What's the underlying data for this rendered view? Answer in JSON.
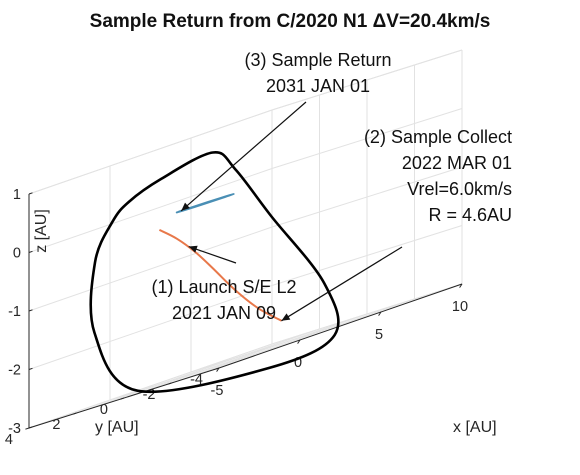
{
  "chart_data": {
    "type": "line",
    "projection": "3d",
    "title": "Sample Return from C/2020 N1 ΔV=20.4km/s",
    "xlabel": "x [AU]",
    "ylabel": "y [AU]",
    "zlabel": "z [AU]",
    "xlim": [
      -5,
      10
    ],
    "ylim": [
      -4,
      4
    ],
    "zlim": [
      -3,
      1
    ],
    "x_ticks": [
      -5,
      0,
      5,
      10
    ],
    "y_ticks": [
      -4,
      -2,
      0,
      2,
      4
    ],
    "z_ticks": [
      -3,
      -2,
      -1,
      0,
      1
    ],
    "x_tick_labels": [
      "-5",
      "0",
      "5",
      "10"
    ],
    "y_tick_labels": [
      "-4",
      "-2",
      "0",
      "2",
      "4"
    ],
    "z_tick_labels": [
      "-3",
      "-2",
      "-1",
      "0",
      "1"
    ],
    "grid": true,
    "series": [
      {
        "role": "comet orbit",
        "color": "#000000",
        "closed": true,
        "points": [
          [
            -0.4,
            -0.6,
            0.68
          ],
          [
            -0.8,
            1.3,
            0.51
          ],
          [
            -1.3,
            2.3,
            0.3
          ],
          [
            -1.9,
            2.6,
            0.05
          ],
          [
            -2.1,
            3.2,
            -0.55
          ],
          [
            -1.4,
            3.7,
            -1.75
          ],
          [
            1.4,
            3.8,
            -3.0
          ],
          [
            4.7,
            0.5,
            -3.35
          ],
          [
            6.1,
            -1.3,
            -3.15
          ],
          [
            5.3,
            -1.4,
            -2.2
          ],
          [
            3.2,
            -0.6,
            -0.75
          ],
          [
            1.3,
            -0.4,
            0.25
          ]
        ]
      },
      {
        "role": "transfer trajectory",
        "color": "#e8784a",
        "closed": false,
        "points": [
          [
            -1.2,
            1.1,
            -0.35
          ],
          [
            -0.7,
            0.7,
            -0.6
          ],
          [
            -0.1,
            0.3,
            -0.95
          ],
          [
            0.6,
            0.0,
            -1.35
          ],
          [
            1.4,
            -0.3,
            -1.8
          ],
          [
            2.4,
            -0.6,
            -2.25
          ],
          [
            3.4,
            -0.9,
            -2.6
          ]
        ]
      },
      {
        "role": "earth orbit",
        "color": "#4a8fb5",
        "closed": true,
        "points": [
          [
            1.0,
            0.0,
            -0.15
          ],
          [
            0.55,
            0.8,
            -0.15
          ],
          [
            -0.35,
            0.95,
            -0.15
          ],
          [
            -1.0,
            0.0,
            -0.15
          ],
          [
            -0.45,
            -0.9,
            -0.15
          ],
          [
            0.45,
            -0.9,
            -0.15
          ]
        ]
      }
    ],
    "markers": [
      {
        "label": "Sample Return",
        "x": 0.0,
        "y": 1.0,
        "z": -0.15
      },
      {
        "label": "Launch",
        "x": -0.2,
        "y": 0.55,
        "z": -0.8
      },
      {
        "label": "Sample Collect",
        "x": 3.4,
        "y": -0.9,
        "z": -2.6
      }
    ],
    "annotations": [
      {
        "lines": [
          "(3) Sample Return",
          "2031 JAN 01"
        ],
        "points_to": "Sample Return"
      },
      {
        "lines": [
          "(2) Sample Collect",
          "2022 MAR 01",
          "Vrel=6.0km/s",
          "R = 4.6AU"
        ],
        "points_to": "Sample Collect"
      },
      {
        "lines": [
          "(1) Launch S/E L2",
          "2021 JAN 09"
        ],
        "points_to": "Launch"
      }
    ]
  }
}
